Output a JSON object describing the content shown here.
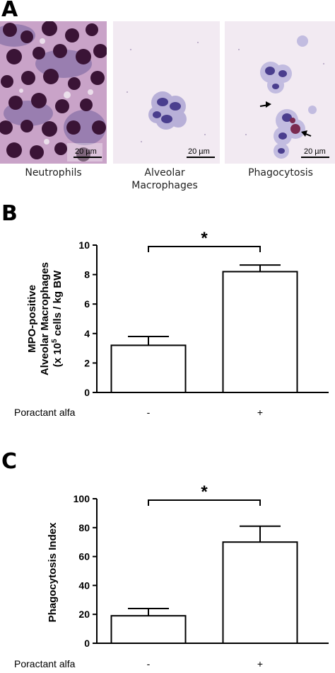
{
  "panels": {
    "a": {
      "letter": "A",
      "images": [
        {
          "caption": "Neutrophils",
          "scale": "20 µm"
        },
        {
          "caption": "Alveolar Macrophages",
          "scale": "20 µm"
        },
        {
          "caption": "Phagocytosis",
          "scale": "20 µm"
        }
      ]
    },
    "b": {
      "letter": "B"
    },
    "c": {
      "letter": "C"
    }
  },
  "chart_data": [
    {
      "type": "bar",
      "categories": [
        "-",
        "+"
      ],
      "values": [
        3.2,
        8.2
      ],
      "errors": [
        0.6,
        0.45
      ],
      "ylabel_line1": "MPO-positive",
      "ylabel_line2": "Alveolar Macrophages",
      "ylabel_line3_pre": "(x 10",
      "ylabel_line3_sup": "5",
      "ylabel_line3_post": " cells / kg BW",
      "xlabel": "Poractant alfa",
      "ylim": [
        0,
        10
      ],
      "yticks": [
        "0",
        "2",
        "4",
        "6",
        "8",
        "10"
      ],
      "significance": "*"
    },
    {
      "type": "bar",
      "categories": [
        "-",
        "+"
      ],
      "values": [
        19,
        70
      ],
      "errors": [
        5,
        11
      ],
      "ylabel": "Phagocytosis Index",
      "xlabel": "Poractant alfa",
      "ylim": [
        0,
        100
      ],
      "yticks": [
        "0",
        "20",
        "40",
        "60",
        "80",
        "100"
      ],
      "significance": "*"
    }
  ]
}
